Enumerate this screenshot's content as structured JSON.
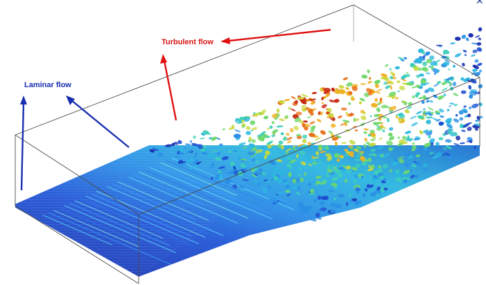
{
  "labels": {
    "laminar": "Laminar flow",
    "turbulent": "Turbulent flow"
  },
  "colors": {
    "laminar_label": "#1a2fb0",
    "turbulent_label": "#d81414",
    "laminar_arrow": "#1a2fb0",
    "turbulent_arrow": "#e01010",
    "box_edge": "#4a4a4a",
    "plate_base": "#1f35c8"
  },
  "icons": {
    "corner": "close-icon"
  }
}
